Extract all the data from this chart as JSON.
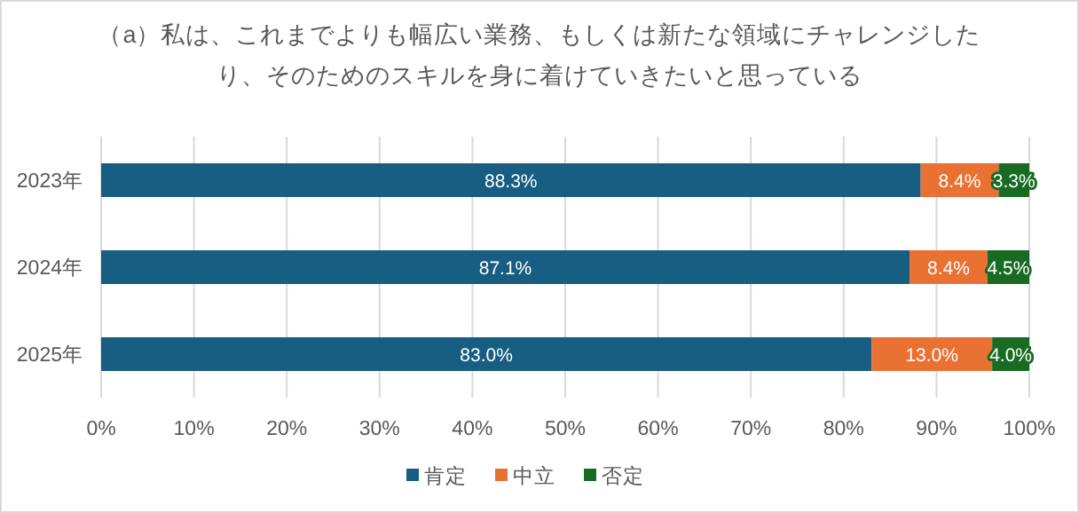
{
  "chart_data": {
    "type": "bar",
    "title": "（a）私は、これまでよりも幅広い業務、もしくは新たな領域にチャレンジしたり、そのためのスキルを身に着けていきたいと思っている",
    "categories": [
      "2023年",
      "2024年",
      "2025年"
    ],
    "series": [
      {
        "name": "肯定",
        "color": "#175e82",
        "values": [
          88.3,
          87.1,
          83.0
        ]
      },
      {
        "name": "中立",
        "color": "#e97132",
        "values": [
          8.4,
          8.4,
          13.0
        ]
      },
      {
        "name": "否定",
        "color": "#196b24",
        "values": [
          3.3,
          4.5,
          4.0
        ]
      }
    ],
    "value_labels": [
      [
        "88.3%",
        "87.1%",
        "83.0%"
      ],
      [
        "8.4%",
        "8.4%",
        "13.0%"
      ],
      [
        "3.3%",
        "4.5%",
        "4.0%"
      ]
    ],
    "stacked": true,
    "orientation": "horizontal",
    "xlim": [
      0,
      100
    ],
    "xticks": [
      {
        "value": 0,
        "label": "0%"
      },
      {
        "value": 10,
        "label": "10%"
      },
      {
        "value": 20,
        "label": "20%"
      },
      {
        "value": 30,
        "label": "30%"
      },
      {
        "value": 40,
        "label": "40%"
      },
      {
        "value": 50,
        "label": "50%"
      },
      {
        "value": 60,
        "label": "60%"
      },
      {
        "value": 70,
        "label": "70%"
      },
      {
        "value": 80,
        "label": "80%"
      },
      {
        "value": 90,
        "label": "90%"
      },
      {
        "value": 100,
        "label": "100%"
      }
    ],
    "grid": "x",
    "legend": "bottom"
  }
}
